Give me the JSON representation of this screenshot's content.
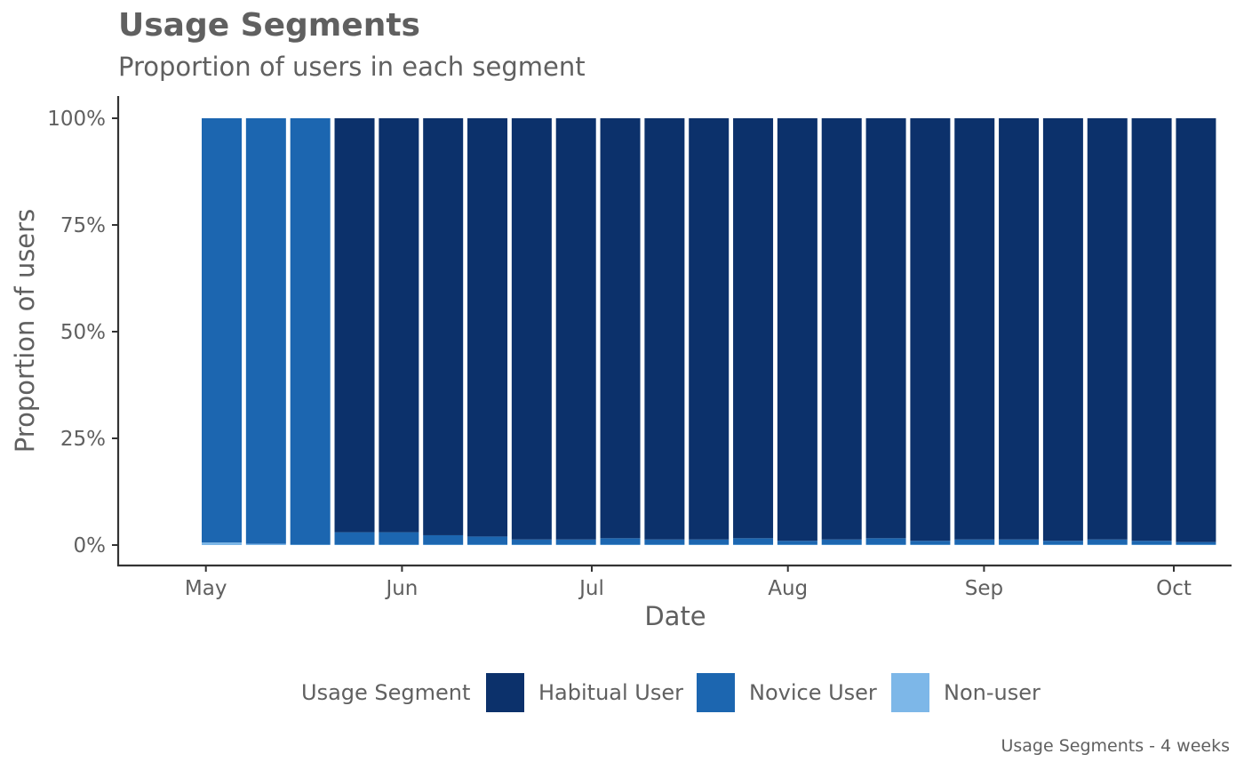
{
  "title": "Usage Segments",
  "subtitle": "Proportion of users in each segment",
  "caption": "Usage Segments - 4 weeks",
  "legend": {
    "title": "Usage Segment",
    "items": [
      {
        "label": "Habitual User",
        "color": "#0c316b"
      },
      {
        "label": "Novice User",
        "color": "#1c66b0"
      },
      {
        "label": "Non-user",
        "color": "#7db7e8"
      }
    ]
  },
  "chart_data": {
    "type": "bar",
    "stacked": true,
    "xlabel": "Date",
    "ylabel": "Proportion of users",
    "ylim": [
      0,
      1
    ],
    "yticks": [
      0,
      0.25,
      0.5,
      0.75,
      1
    ],
    "ytick_labels": [
      "0%",
      "25%",
      "50%",
      "75%",
      "100%"
    ],
    "xticks": [
      {
        "label": "May",
        "date": "2023-05-01"
      },
      {
        "label": "Jun",
        "date": "2023-06-01"
      },
      {
        "label": "Jul",
        "date": "2023-07-01"
      },
      {
        "label": "Aug",
        "date": "2023-08-01"
      },
      {
        "label": "Sep",
        "date": "2023-09-01"
      },
      {
        "label": "Oct",
        "date": "2023-10-01"
      }
    ],
    "x": [
      "2023-04-30",
      "2023-05-07",
      "2023-05-14",
      "2023-05-21",
      "2023-05-28",
      "2023-06-04",
      "2023-06-11",
      "2023-06-18",
      "2023-06-25",
      "2023-07-02",
      "2023-07-09",
      "2023-07-16",
      "2023-07-23",
      "2023-07-30",
      "2023-08-06",
      "2023-08-13",
      "2023-08-20",
      "2023-08-27",
      "2023-09-03",
      "2023-09-10",
      "2023-09-17",
      "2023-09-24",
      "2023-09-31"
    ],
    "series": [
      {
        "name": "Non-user",
        "values": [
          0.006,
          0.003,
          0.001,
          0.001,
          0.001,
          0.001,
          0.001,
          0.001,
          0.001,
          0.001,
          0.001,
          0.001,
          0.001,
          0.001,
          0.001,
          0.001,
          0.001,
          0.001,
          0.001,
          0.001,
          0.001,
          0.001,
          0.001
        ]
      },
      {
        "name": "Novice User",
        "values": [
          0.994,
          0.997,
          0.999,
          0.029,
          0.029,
          0.022,
          0.019,
          0.012,
          0.012,
          0.015,
          0.012,
          0.012,
          0.015,
          0.009,
          0.012,
          0.015,
          0.009,
          0.012,
          0.012,
          0.009,
          0.012,
          0.009,
          0.006
        ]
      },
      {
        "name": "Habitual User",
        "values": [
          0,
          0,
          0,
          0.97,
          0.97,
          0.977,
          0.98,
          0.987,
          0.987,
          0.984,
          0.987,
          0.987,
          0.984,
          0.99,
          0.987,
          0.984,
          0.99,
          0.987,
          0.987,
          0.99,
          0.987,
          0.99,
          0.993
        ]
      }
    ]
  }
}
